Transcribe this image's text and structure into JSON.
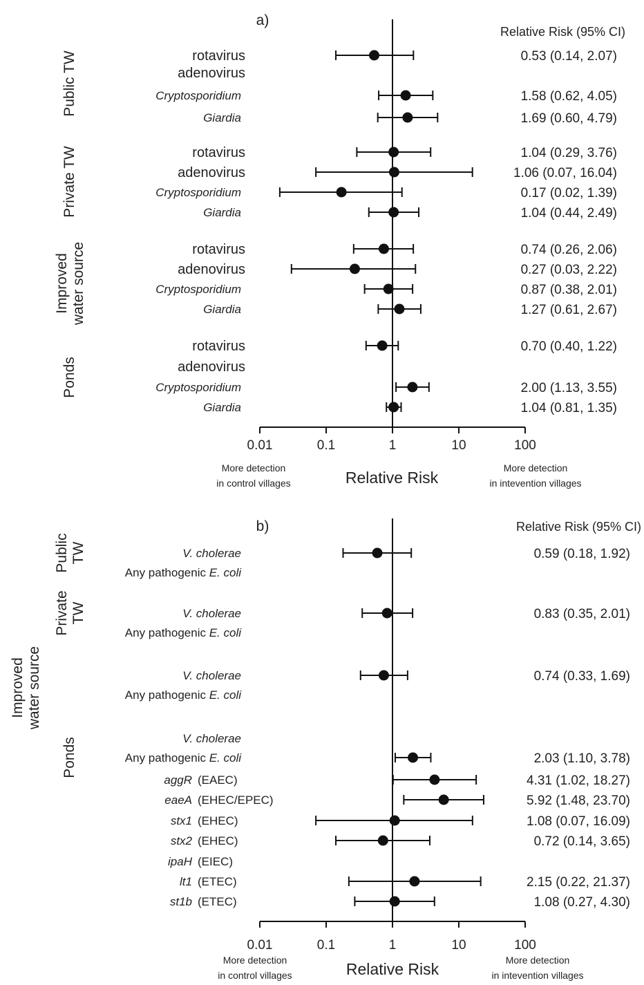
{
  "chart_data": [
    {
      "type": "forest",
      "panel": "a)",
      "xscale": "log",
      "xlim": [
        0.01,
        100
      ],
      "xticks": [
        "0.01",
        "0.1",
        "1",
        "10",
        "100"
      ],
      "xlabel": "Relative Risk",
      "left_note": [
        "More detection",
        "in control villages"
      ],
      "right_note": [
        "More detection",
        "in intevention villages"
      ],
      "rr_header": "Relative Risk (95% CI)",
      "groups": [
        {
          "label": [
            "Public TW"
          ],
          "rows": [
            {
              "label": "rotavirus",
              "style": "normal",
              "rr": 0.53,
              "lo": 0.14,
              "hi": 2.07,
              "text": "0.53 (0.14, 2.07)"
            },
            {
              "label": "adenovirus",
              "style": "normal",
              "rr": null,
              "lo": null,
              "hi": null,
              "text": ""
            },
            {
              "label": "Cryptosporidium",
              "style": "italic",
              "rr": 1.58,
              "lo": 0.62,
              "hi": 4.05,
              "text": "1.58 (0.62, 4.05)"
            },
            {
              "label": "Giardia",
              "style": "italic",
              "rr": 1.69,
              "lo": 0.6,
              "hi": 4.79,
              "text": "1.69 (0.60, 4.79)"
            }
          ]
        },
        {
          "label": [
            "Private TW"
          ],
          "rows": [
            {
              "label": "rotavirus",
              "style": "normal",
              "rr": 1.04,
              "lo": 0.29,
              "hi": 3.76,
              "text": "1.04 (0.29, 3.76)"
            },
            {
              "label": "adenovirus",
              "style": "normal",
              "rr": 1.06,
              "lo": 0.07,
              "hi": 16.04,
              "text": "1.06 (0.07, 16.04)"
            },
            {
              "label": "Cryptosporidium",
              "style": "italic",
              "rr": 0.17,
              "lo": 0.02,
              "hi": 1.39,
              "text": "0.17 (0.02, 1.39)"
            },
            {
              "label": "Giardia",
              "style": "italic",
              "rr": 1.04,
              "lo": 0.44,
              "hi": 2.49,
              "text": "1.04 (0.44, 2.49)"
            }
          ]
        },
        {
          "label": [
            "Improved",
            "water source"
          ],
          "rows": [
            {
              "label": "rotavirus",
              "style": "normal",
              "rr": 0.74,
              "lo": 0.26,
              "hi": 2.06,
              "text": "0.74 (0.26, 2.06)"
            },
            {
              "label": "adenovirus",
              "style": "normal",
              "rr": 0.27,
              "lo": 0.03,
              "hi": 2.22,
              "text": "0.27 (0.03, 2.22)"
            },
            {
              "label": "Cryptosporidium",
              "style": "italic",
              "rr": 0.87,
              "lo": 0.38,
              "hi": 2.01,
              "text": "0.87 (0.38, 2.01)"
            },
            {
              "label": "Giardia",
              "style": "italic",
              "rr": 1.27,
              "lo": 0.61,
              "hi": 2.67,
              "text": "1.27 (0.61, 2.67)"
            }
          ]
        },
        {
          "label": [
            "Ponds"
          ],
          "rows": [
            {
              "label": "rotavirus",
              "style": "normal",
              "rr": 0.7,
              "lo": 0.4,
              "hi": 1.22,
              "text": "0.70 (0.40, 1.22)"
            },
            {
              "label": "adenovirus",
              "style": "normal",
              "rr": null,
              "lo": null,
              "hi": null,
              "text": ""
            },
            {
              "label": "Cryptosporidium",
              "style": "italic",
              "rr": 2.0,
              "lo": 1.13,
              "hi": 3.55,
              "text": "2.00 (1.13, 3.55)"
            },
            {
              "label": "Giardia",
              "style": "italic",
              "rr": 1.04,
              "lo": 0.81,
              "hi": 1.35,
              "text": "1.04 (0.81, 1.35)"
            }
          ]
        }
      ]
    },
    {
      "type": "forest",
      "panel": "b)",
      "xscale": "log",
      "xlim": [
        0.01,
        100
      ],
      "xticks": [
        "0.01",
        "0.1",
        "1",
        "10",
        "100"
      ],
      "xlabel": "Relative Risk",
      "left_note": [
        "More detection",
        "in control villages"
      ],
      "right_note": [
        "More detection",
        "in intevention villages"
      ],
      "rr_header": "Relative Risk (95% CI)",
      "groups": [
        {
          "label": [
            "Public",
            "TW"
          ],
          "rows": [
            {
              "label": "V. cholerae",
              "style": "italic",
              "rr": 0.59,
              "lo": 0.18,
              "hi": 1.92,
              "text": "0.59 (0.18, 1.92)"
            },
            {
              "label": "Any pathogenic ",
              "label_it": "E. coli",
              "style": "mixed",
              "rr": null,
              "lo": null,
              "hi": null,
              "text": ""
            }
          ]
        },
        {
          "label": [
            "Private",
            "TW"
          ],
          "rows": [
            {
              "label": "V. cholerae",
              "style": "italic",
              "rr": 0.83,
              "lo": 0.35,
              "hi": 2.01,
              "text": "0.83 (0.35, 2.01)"
            },
            {
              "label": "Any pathogenic ",
              "label_it": "E. coli",
              "style": "mixed",
              "rr": null,
              "lo": null,
              "hi": null,
              "text": ""
            }
          ]
        },
        {
          "label": [
            "Improved",
            "water source"
          ],
          "rows": [
            {
              "label": "V. cholerae",
              "style": "italic",
              "rr": 0.74,
              "lo": 0.33,
              "hi": 1.69,
              "text": "0.74 (0.33, 1.69)"
            },
            {
              "label": "Any pathogenic ",
              "label_it": "E. coli",
              "style": "mixed",
              "rr": null,
              "lo": null,
              "hi": null,
              "text": ""
            }
          ]
        },
        {
          "label": [
            "Ponds"
          ],
          "rows": [
            {
              "label": "V. cholerae",
              "style": "italic",
              "rr": null,
              "lo": null,
              "hi": null,
              "text": ""
            },
            {
              "label": "Any pathogenic ",
              "label_it": "E. coli",
              "style": "mixed",
              "rr": 2.03,
              "lo": 1.1,
              "hi": 3.78,
              "text": "2.03 (1.10, 3.78)"
            },
            {
              "label": "aggR",
              "suffix": "(EAEC)",
              "style": "gene",
              "rr": 4.31,
              "lo": 1.02,
              "hi": 18.27,
              "text": "4.31 (1.02, 18.27)"
            },
            {
              "label": "eaeA",
              "suffix": "(EHEC/EPEC)",
              "style": "gene",
              "rr": 5.92,
              "lo": 1.48,
              "hi": 23.7,
              "text": "5.92 (1.48, 23.70)"
            },
            {
              "label": "stx1",
              "suffix": "(EHEC)",
              "style": "gene",
              "rr": 1.08,
              "lo": 0.07,
              "hi": 16.09,
              "text": "1.08 (0.07, 16.09)"
            },
            {
              "label": "stx2",
              "suffix": "(EHEC)",
              "style": "gene",
              "rr": 0.72,
              "lo": 0.14,
              "hi": 3.65,
              "text": "0.72 (0.14, 3.65)"
            },
            {
              "label": "ipaH",
              "suffix": "(EIEC)",
              "style": "gene",
              "rr": null,
              "lo": null,
              "hi": null,
              "text": ""
            },
            {
              "label": "lt1",
              "suffix": "(ETEC)",
              "style": "gene",
              "rr": 2.15,
              "lo": 0.22,
              "hi": 21.37,
              "text": "2.15 (0.22, 21.37)"
            },
            {
              "label": "st1b",
              "suffix": "(ETEC)",
              "style": "gene",
              "rr": 1.08,
              "lo": 0.27,
              "hi": 4.3,
              "text": "1.08 (0.27, 4.30)"
            }
          ]
        }
      ]
    }
  ]
}
